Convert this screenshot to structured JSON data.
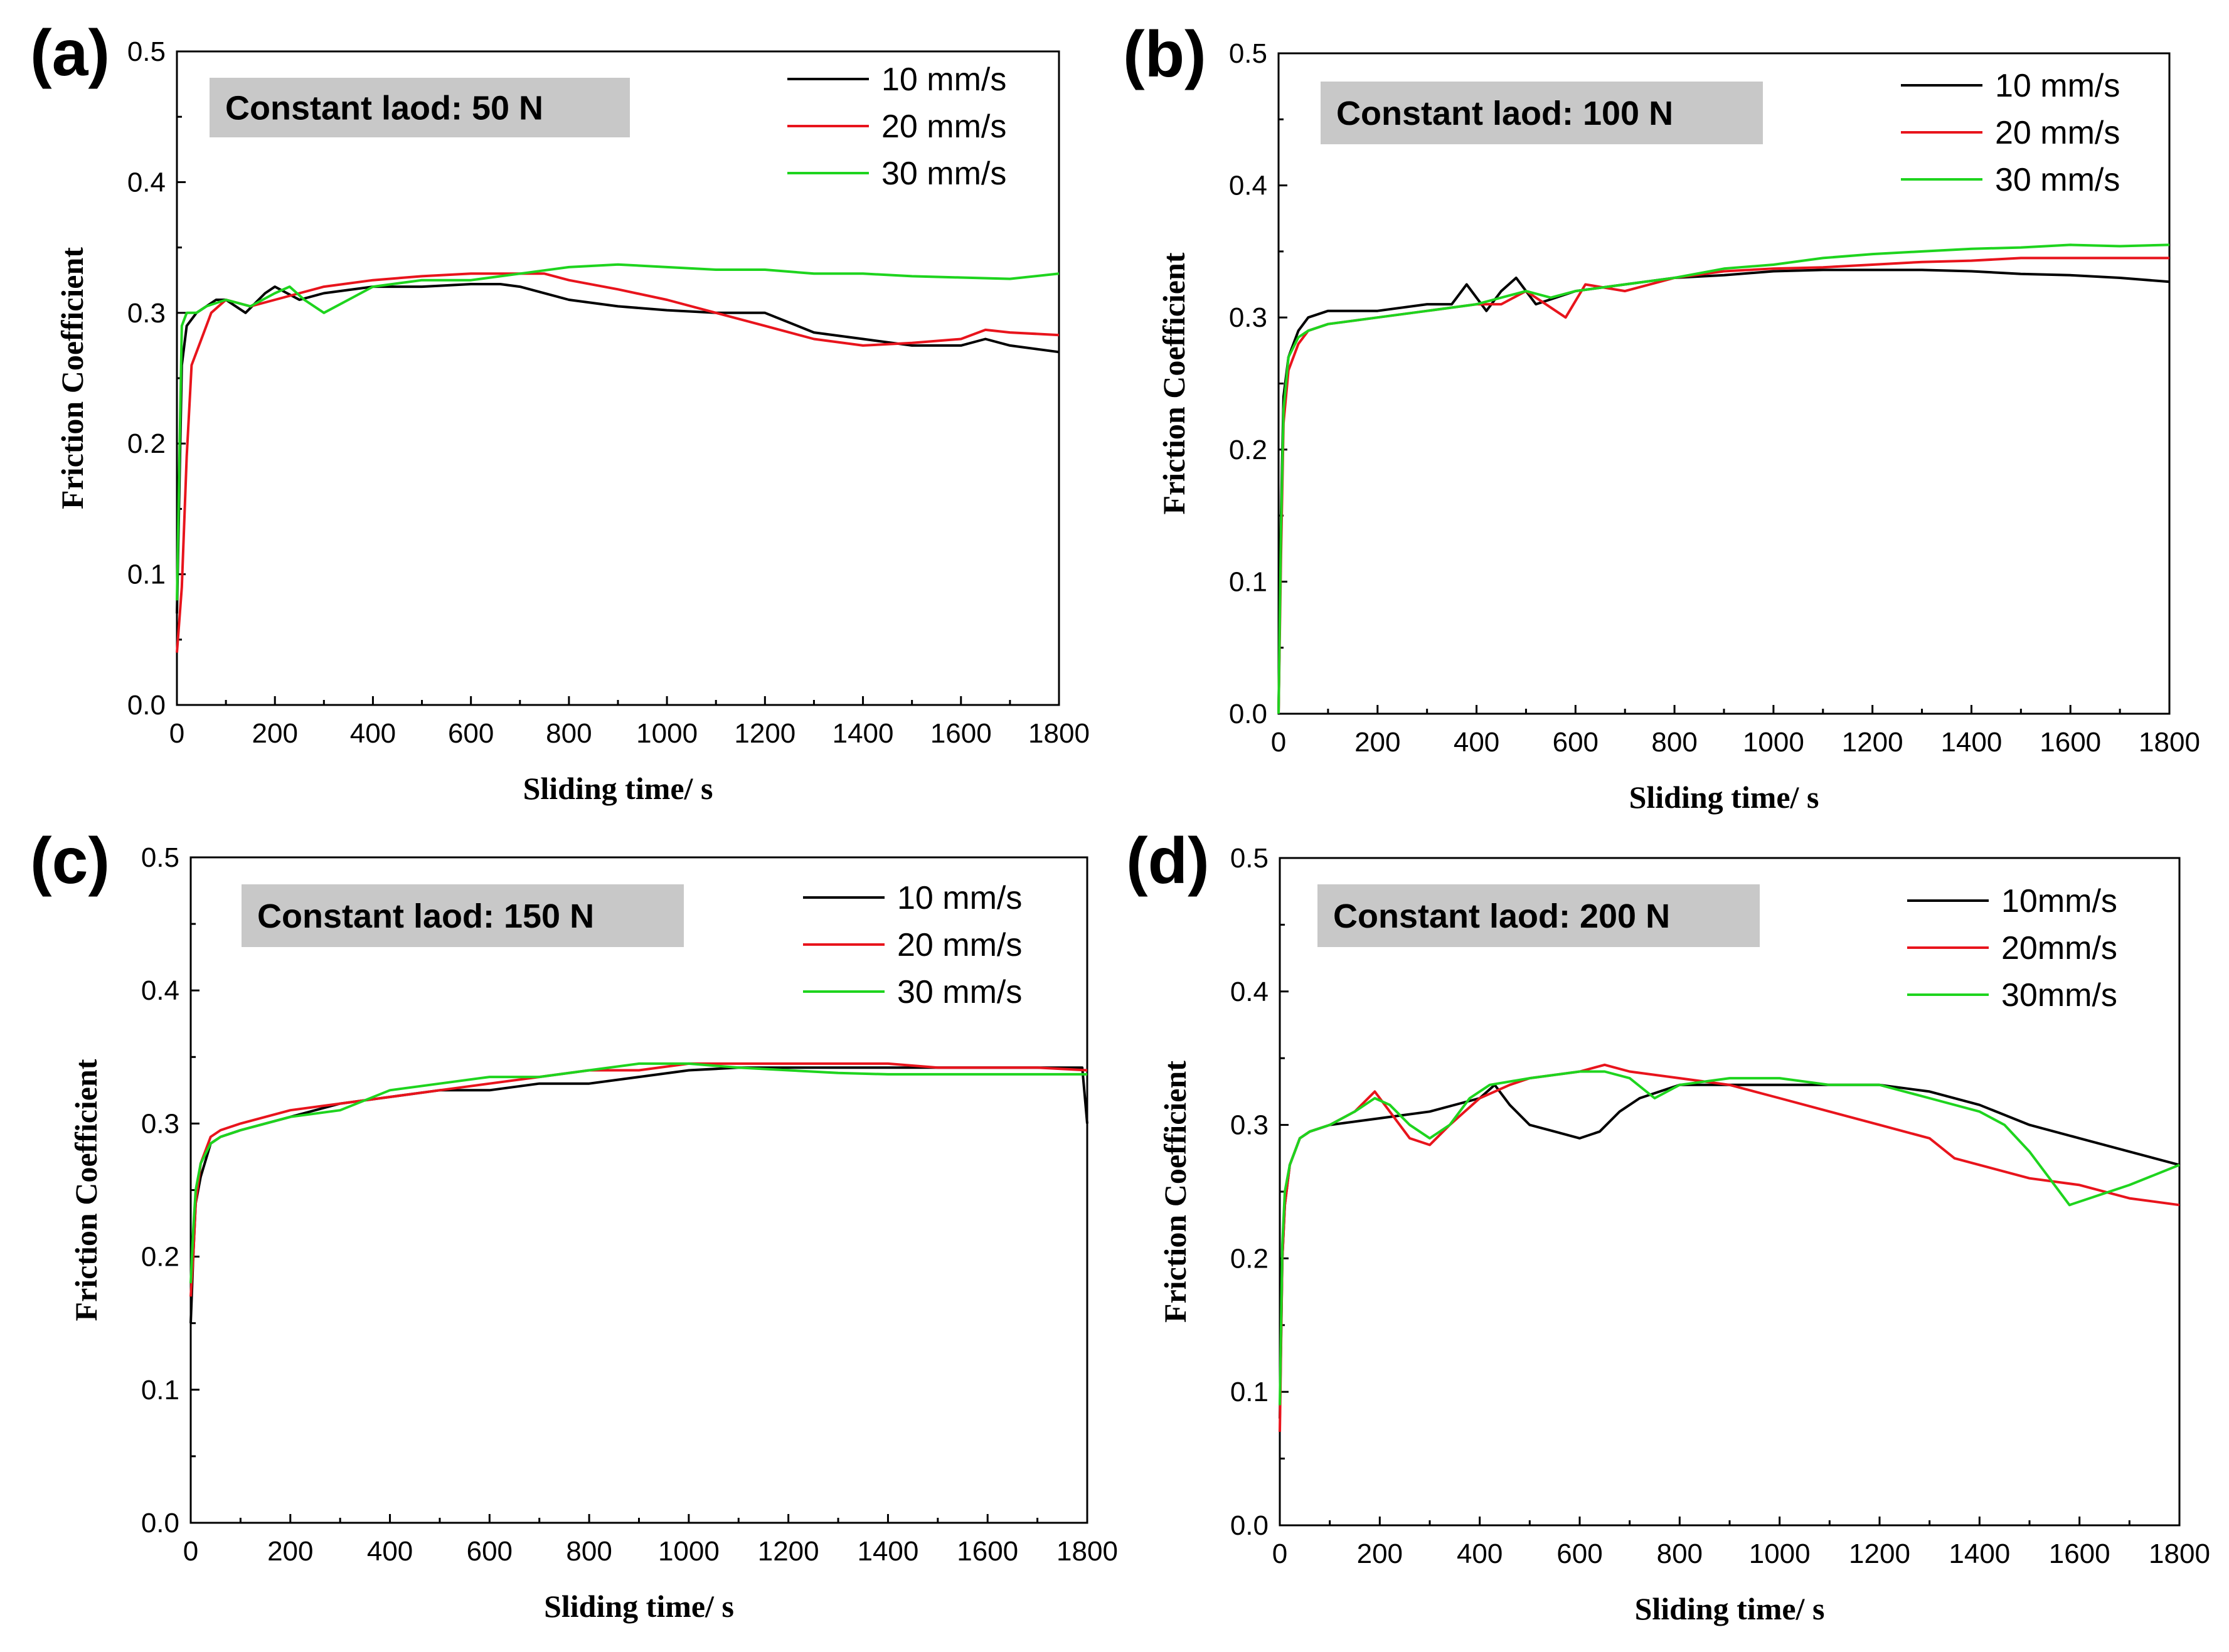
{
  "chart_data": [
    {
      "type": "line",
      "panel_label": "(a)",
      "annotation": "Constant laod: 50 N",
      "xlabel": "Sliding time/ s",
      "ylabel": "Friction Coefficient",
      "xlim": [
        0,
        1800
      ],
      "ylim": [
        0.0,
        0.5
      ],
      "xticks": [
        "0",
        "200",
        "400",
        "600",
        "800",
        "1000",
        "1200",
        "1400",
        "1600",
        "1800"
      ],
      "yticks": [
        "0.0",
        "0.1",
        "0.2",
        "0.3",
        "0.4",
        "0.5"
      ],
      "legend_position": "top-right",
      "series": [
        {
          "name": "10 mm/s",
          "color": "#000000",
          "x": [
            0,
            10,
            20,
            40,
            60,
            80,
            100,
            140,
            180,
            200,
            250,
            300,
            400,
            500,
            600,
            660,
            700,
            800,
            900,
            1000,
            1100,
            1200,
            1300,
            1400,
            1500,
            1600,
            1650,
            1700,
            1800
          ],
          "y": [
            0.07,
            0.26,
            0.29,
            0.3,
            0.305,
            0.31,
            0.31,
            0.3,
            0.315,
            0.32,
            0.31,
            0.315,
            0.32,
            0.32,
            0.322,
            0.322,
            0.32,
            0.31,
            0.305,
            0.302,
            0.3,
            0.3,
            0.285,
            0.28,
            0.275,
            0.275,
            0.28,
            0.275,
            0.27
          ]
        },
        {
          "name": "20 mm/s",
          "color": "#e8141c",
          "x": [
            0,
            10,
            20,
            30,
            50,
            70,
            100,
            150,
            200,
            250,
            300,
            400,
            500,
            600,
            700,
            750,
            800,
            900,
            1000,
            1100,
            1200,
            1300,
            1400,
            1500,
            1600,
            1650,
            1700,
            1800
          ],
          "y": [
            0.04,
            0.09,
            0.19,
            0.26,
            0.28,
            0.3,
            0.31,
            0.305,
            0.31,
            0.315,
            0.32,
            0.325,
            0.328,
            0.33,
            0.33,
            0.33,
            0.325,
            0.318,
            0.31,
            0.3,
            0.29,
            0.28,
            0.275,
            0.277,
            0.28,
            0.287,
            0.285,
            0.283
          ]
        },
        {
          "name": "30 mm/s",
          "color": "#1ed41e",
          "x": [
            0,
            10,
            20,
            40,
            60,
            100,
            150,
            200,
            230,
            260,
            300,
            350,
            400,
            500,
            600,
            700,
            800,
            900,
            1000,
            1100,
            1200,
            1300,
            1400,
            1500,
            1600,
            1700,
            1800
          ],
          "y": [
            0.08,
            0.29,
            0.3,
            0.3,
            0.305,
            0.31,
            0.305,
            0.315,
            0.32,
            0.31,
            0.3,
            0.31,
            0.32,
            0.325,
            0.325,
            0.33,
            0.335,
            0.337,
            0.335,
            0.333,
            0.333,
            0.33,
            0.33,
            0.328,
            0.327,
            0.326,
            0.33
          ]
        }
      ]
    },
    {
      "type": "line",
      "panel_label": "(b)",
      "annotation": "Constant laod: 100 N",
      "xlabel": "Sliding time/ s",
      "ylabel": "Friction Coefficient",
      "xlim": [
        0,
        1800
      ],
      "ylim": [
        0.0,
        0.5
      ],
      "xticks": [
        "0",
        "200",
        "400",
        "600",
        "800",
        "1000",
        "1200",
        "1400",
        "1600",
        "1800"
      ],
      "yticks": [
        "0.0",
        "0.1",
        "0.2",
        "0.3",
        "0.4",
        "0.5"
      ],
      "legend_position": "top-right",
      "series": [
        {
          "name": "10 mm/s",
          "color": "#000000",
          "x": [
            0,
            5,
            10,
            20,
            40,
            60,
            100,
            200,
            300,
            350,
            380,
            420,
            450,
            480,
            520,
            560,
            600,
            700,
            800,
            900,
            1000,
            1100,
            1200,
            1300,
            1400,
            1500,
            1600,
            1700,
            1800
          ],
          "y": [
            0.0,
            0.15,
            0.24,
            0.27,
            0.29,
            0.3,
            0.305,
            0.305,
            0.31,
            0.31,
            0.325,
            0.305,
            0.32,
            0.33,
            0.31,
            0.315,
            0.32,
            0.325,
            0.33,
            0.332,
            0.335,
            0.336,
            0.336,
            0.336,
            0.335,
            0.333,
            0.332,
            0.33,
            0.327
          ]
        },
        {
          "name": "20 mm/s",
          "color": "#e8141c",
          "x": [
            0,
            5,
            10,
            20,
            40,
            60,
            100,
            200,
            300,
            400,
            450,
            500,
            540,
            580,
            620,
            700,
            800,
            900,
            1000,
            1100,
            1200,
            1300,
            1400,
            1500,
            1600,
            1700,
            1800
          ],
          "y": [
            0.0,
            0.12,
            0.22,
            0.26,
            0.28,
            0.29,
            0.295,
            0.3,
            0.305,
            0.31,
            0.31,
            0.32,
            0.31,
            0.3,
            0.325,
            0.32,
            0.33,
            0.335,
            0.337,
            0.338,
            0.34,
            0.342,
            0.343,
            0.345,
            0.345,
            0.345,
            0.345
          ]
        },
        {
          "name": "30 mm/s",
          "color": "#1ed41e",
          "x": [
            0,
            5,
            10,
            20,
            40,
            60,
            100,
            200,
            300,
            400,
            450,
            500,
            550,
            600,
            700,
            800,
            900,
            1000,
            1100,
            1200,
            1300,
            1400,
            1500,
            1600,
            1700,
            1800
          ],
          "y": [
            0.0,
            0.14,
            0.23,
            0.27,
            0.285,
            0.29,
            0.295,
            0.3,
            0.305,
            0.31,
            0.315,
            0.32,
            0.315,
            0.32,
            0.325,
            0.33,
            0.337,
            0.34,
            0.345,
            0.348,
            0.35,
            0.352,
            0.353,
            0.355,
            0.354,
            0.355
          ]
        }
      ]
    },
    {
      "type": "line",
      "panel_label": "(c)",
      "annotation": "Constant laod: 150 N",
      "xlabel": "Sliding time/ s",
      "ylabel": "Friction Coefficient",
      "xlim": [
        0,
        1800
      ],
      "ylim": [
        0.0,
        0.5
      ],
      "xticks": [
        "0",
        "200",
        "400",
        "600",
        "800",
        "1000",
        "1200",
        "1400",
        "1600",
        "1800"
      ],
      "yticks": [
        "0.0",
        "0.1",
        "0.2",
        "0.3",
        "0.4",
        "0.5"
      ],
      "legend_position": "top-right",
      "series": [
        {
          "name": "10 mm/s",
          "color": "#000000",
          "x": [
            0,
            5,
            10,
            20,
            40,
            60,
            100,
            200,
            300,
            400,
            500,
            600,
            700,
            800,
            900,
            1000,
            1100,
            1200,
            1300,
            1400,
            1500,
            1600,
            1700,
            1790,
            1800
          ],
          "y": [
            0.15,
            0.2,
            0.24,
            0.26,
            0.285,
            0.29,
            0.295,
            0.305,
            0.315,
            0.32,
            0.325,
            0.325,
            0.33,
            0.33,
            0.335,
            0.34,
            0.342,
            0.342,
            0.342,
            0.342,
            0.342,
            0.342,
            0.342,
            0.342,
            0.3
          ]
        },
        {
          "name": "20 mm/s",
          "color": "#e8141c",
          "x": [
            0,
            5,
            10,
            20,
            40,
            60,
            100,
            200,
            300,
            400,
            500,
            600,
            700,
            800,
            900,
            1000,
            1100,
            1200,
            1300,
            1400,
            1500,
            1600,
            1700,
            1800
          ],
          "y": [
            0.17,
            0.2,
            0.24,
            0.27,
            0.29,
            0.295,
            0.3,
            0.31,
            0.315,
            0.32,
            0.325,
            0.33,
            0.335,
            0.34,
            0.34,
            0.345,
            0.345,
            0.345,
            0.345,
            0.345,
            0.342,
            0.342,
            0.342,
            0.34
          ]
        },
        {
          "name": "30 mm/s",
          "color": "#1ed41e",
          "x": [
            0,
            5,
            10,
            20,
            40,
            60,
            100,
            200,
            300,
            400,
            500,
            600,
            700,
            800,
            900,
            1000,
            1100,
            1200,
            1300,
            1400,
            1500,
            1600,
            1700,
            1800
          ],
          "y": [
            0.18,
            0.22,
            0.25,
            0.27,
            0.285,
            0.29,
            0.295,
            0.305,
            0.31,
            0.325,
            0.33,
            0.335,
            0.335,
            0.34,
            0.345,
            0.345,
            0.342,
            0.34,
            0.338,
            0.337,
            0.337,
            0.337,
            0.337,
            0.337
          ]
        }
      ]
    },
    {
      "type": "line",
      "panel_label": "(d)",
      "annotation": "Constant laod: 200 N",
      "xlabel": "Sliding time/ s",
      "ylabel": "Friction Coefficient",
      "xlim": [
        0,
        1800
      ],
      "ylim": [
        0.0,
        0.5
      ],
      "xticks": [
        "0",
        "200",
        "400",
        "600",
        "800",
        "1000",
        "1200",
        "1400",
        "1600",
        "1800"
      ],
      "yticks": [
        "0.0",
        "0.1",
        "0.2",
        "0.3",
        "0.4",
        "0.5"
      ],
      "legend_position": "top-right",
      "series": [
        {
          "name": "10mm/s",
          "color": "#000000",
          "x": [
            0,
            5,
            10,
            20,
            40,
            60,
            100,
            200,
            300,
            400,
            430,
            460,
            500,
            550,
            600,
            640,
            680,
            720,
            800,
            900,
            1000,
            1100,
            1200,
            1300,
            1400,
            1500,
            1600,
            1700,
            1800
          ],
          "y": [
            0.08,
            0.2,
            0.24,
            0.27,
            0.29,
            0.295,
            0.3,
            0.305,
            0.31,
            0.32,
            0.33,
            0.315,
            0.3,
            0.295,
            0.29,
            0.295,
            0.31,
            0.32,
            0.33,
            0.33,
            0.33,
            0.33,
            0.33,
            0.325,
            0.315,
            0.3,
            0.29,
            0.28,
            0.27
          ]
        },
        {
          "name": "20mm/s",
          "color": "#e8141c",
          "x": [
            0,
            5,
            10,
            20,
            40,
            60,
            100,
            150,
            190,
            220,
            260,
            300,
            340,
            400,
            430,
            460,
            500,
            600,
            650,
            700,
            800,
            900,
            1000,
            1100,
            1200,
            1300,
            1350,
            1400,
            1500,
            1600,
            1700,
            1800
          ],
          "y": [
            0.07,
            0.2,
            0.24,
            0.27,
            0.29,
            0.295,
            0.3,
            0.31,
            0.325,
            0.31,
            0.29,
            0.285,
            0.3,
            0.32,
            0.325,
            0.33,
            0.335,
            0.34,
            0.345,
            0.34,
            0.335,
            0.33,
            0.32,
            0.31,
            0.3,
            0.29,
            0.275,
            0.27,
            0.26,
            0.255,
            0.245,
            0.24
          ]
        },
        {
          "name": "30mm/s",
          "color": "#1ed41e",
          "x": [
            0,
            5,
            10,
            20,
            40,
            60,
            100,
            150,
            190,
            220,
            260,
            300,
            340,
            380,
            420,
            500,
            600,
            650,
            700,
            750,
            800,
            900,
            1000,
            1100,
            1200,
            1300,
            1400,
            1450,
            1500,
            1540,
            1580,
            1620,
            1700,
            1800
          ],
          "y": [
            0.09,
            0.21,
            0.25,
            0.27,
            0.29,
            0.295,
            0.3,
            0.31,
            0.32,
            0.315,
            0.3,
            0.29,
            0.3,
            0.32,
            0.33,
            0.335,
            0.34,
            0.34,
            0.335,
            0.32,
            0.33,
            0.335,
            0.335,
            0.33,
            0.33,
            0.32,
            0.31,
            0.3,
            0.28,
            0.26,
            0.24,
            0.245,
            0.255,
            0.27
          ]
        }
      ]
    }
  ]
}
